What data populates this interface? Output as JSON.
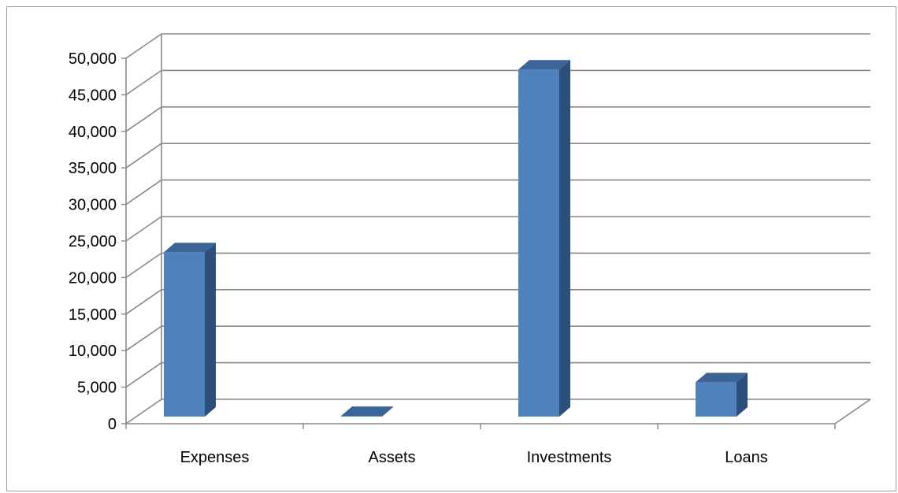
{
  "chart_data": {
    "type": "bar",
    "title": "",
    "xlabel": "",
    "ylabel": "",
    "categories": [
      "Expenses",
      "Assets",
      "Investments",
      "Loans"
    ],
    "values": [
      22500,
      100,
      47500,
      4700
    ],
    "ylim": [
      0,
      50000
    ],
    "ytick_step": 5000,
    "ytick_labels": [
      "0",
      "5,000",
      "10,000",
      "15,000",
      "20,000",
      "25,000",
      "30,000",
      "35,000",
      "40,000",
      "45,000",
      "50,000"
    ],
    "grid": true,
    "legend": "none",
    "style": "3d-column",
    "colors": {
      "bar_front": "#4f81bd",
      "bar_side": "#2c4f7c",
      "bar_top": "#3c6497",
      "grid": "#888888",
      "axis": "#888888",
      "border": "#9a9a9a"
    }
  }
}
